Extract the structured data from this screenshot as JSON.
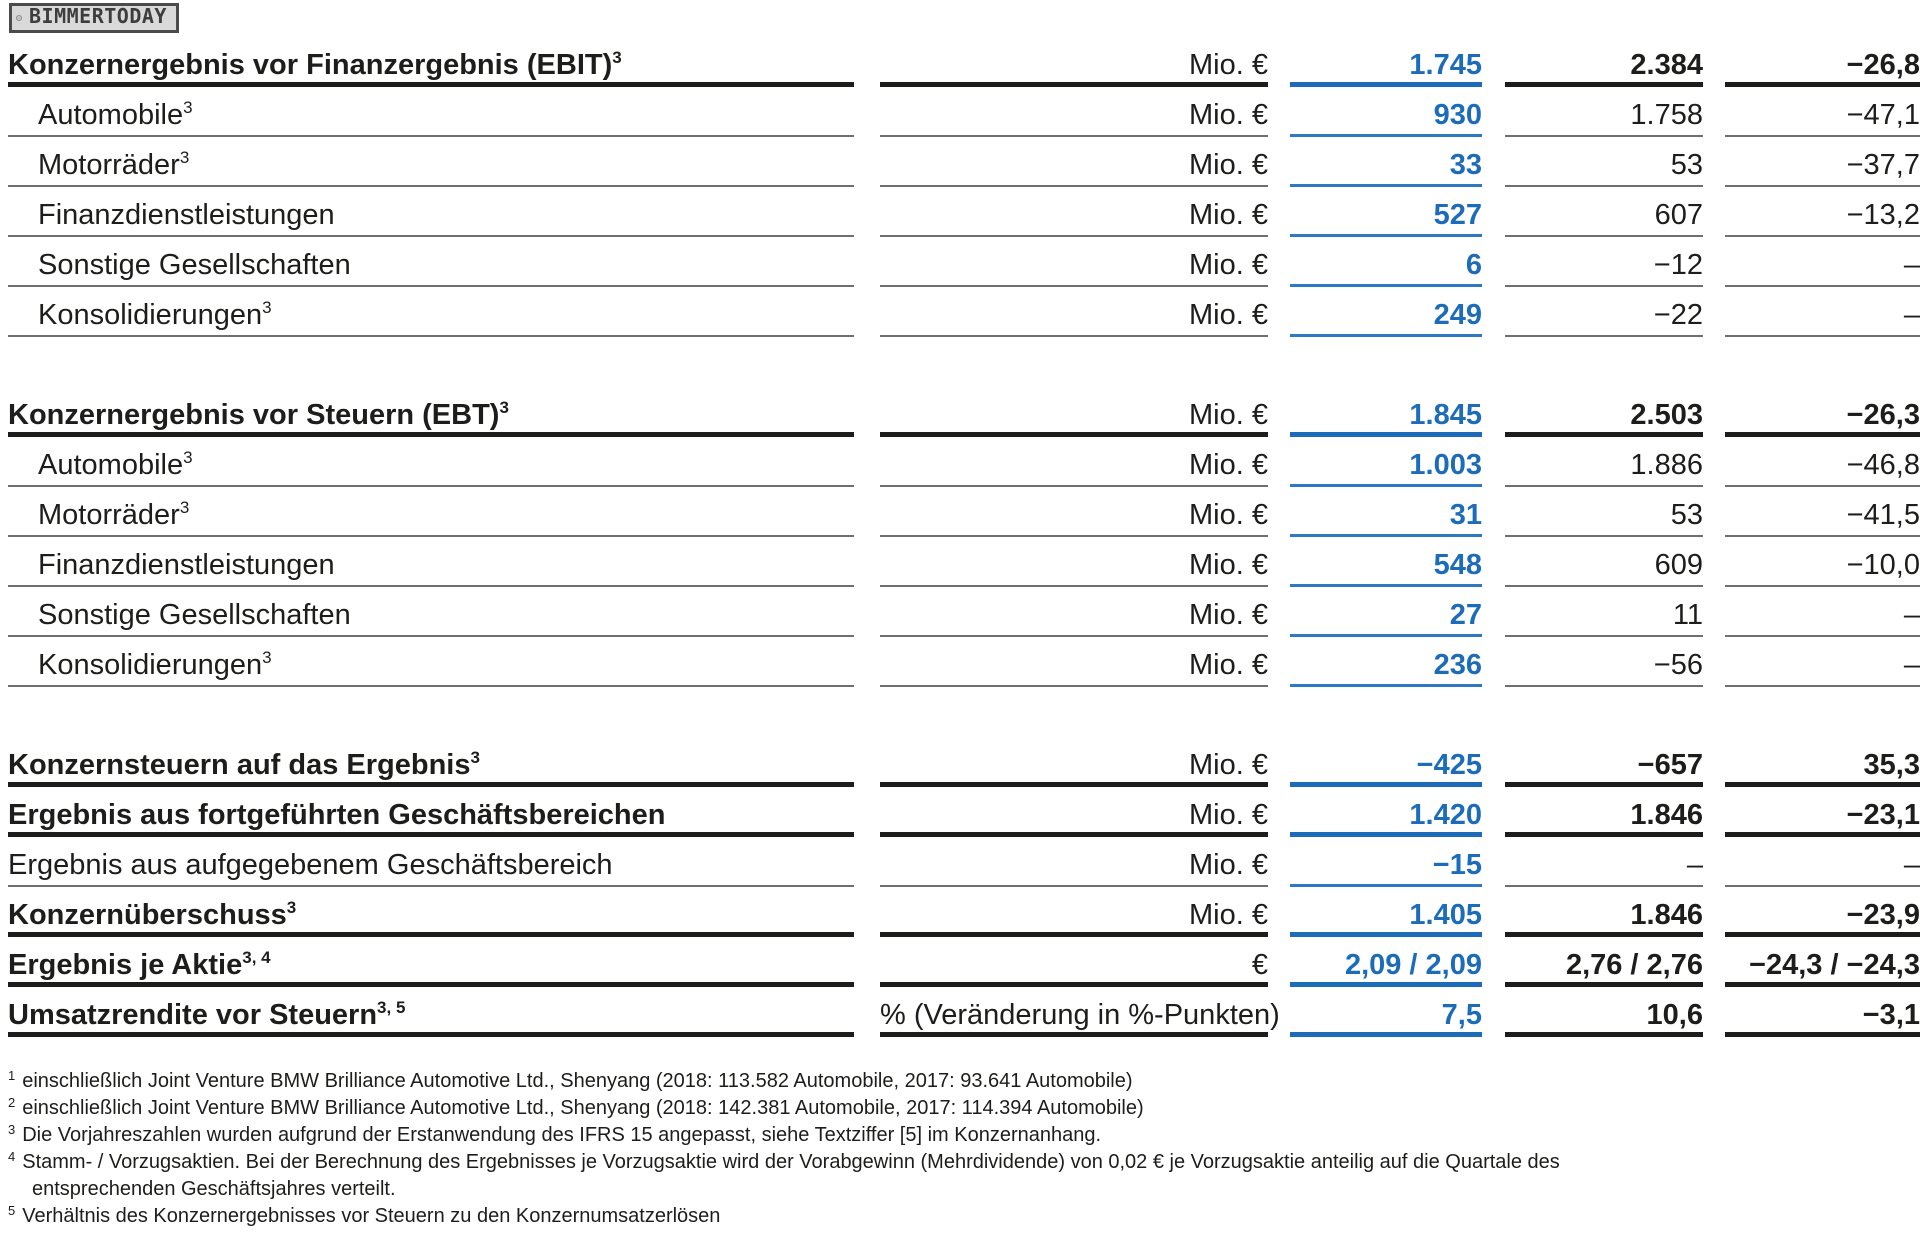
{
  "logo": {
    "text": "BIMMERTODAY"
  },
  "colors": {
    "accent_blue": "#1c6cba",
    "ink": "#1d1d1b",
    "rule_gray": "#6f6f6f",
    "logo_bg": "#d9d9d9",
    "logo_border": "#4b4b4b"
  },
  "table": {
    "rows": [
      {
        "label": "Konzernergebnis vor Finanzergebnis (EBIT)",
        "sup": "3",
        "unit": "Mio. €",
        "current": "1.745",
        "previous": "2.384",
        "change": "−26,8",
        "bold": true,
        "indent": false,
        "gap_before": false
      },
      {
        "label": "Automobile",
        "sup": "3",
        "unit": "Mio. €",
        "current": "930",
        "previous": "1.758",
        "change": "−47,1",
        "bold": false,
        "indent": true,
        "gap_before": false
      },
      {
        "label": "Motorräder",
        "sup": "3",
        "unit": "Mio. €",
        "current": "33",
        "previous": "53",
        "change": "−37,7",
        "bold": false,
        "indent": true,
        "gap_before": false
      },
      {
        "label": "Finanzdienstleistungen",
        "sup": "",
        "unit": "Mio. €",
        "current": "527",
        "previous": "607",
        "change": "−13,2",
        "bold": false,
        "indent": true,
        "gap_before": false
      },
      {
        "label": "Sonstige Gesellschaften",
        "sup": "",
        "unit": "Mio. €",
        "current": "6",
        "previous": "−12",
        "change": "–",
        "bold": false,
        "indent": true,
        "gap_before": false
      },
      {
        "label": "Konsolidierungen",
        "sup": "3",
        "unit": "Mio. €",
        "current": "249",
        "previous": "−22",
        "change": "–",
        "bold": false,
        "indent": true,
        "gap_before": false
      },
      {
        "label": "Konzernergebnis vor Steuern (EBT)",
        "sup": "3",
        "unit": "Mio. €",
        "current": "1.845",
        "previous": "2.503",
        "change": "−26,3",
        "bold": true,
        "indent": false,
        "gap_before": true
      },
      {
        "label": "Automobile",
        "sup": "3",
        "unit": "Mio. €",
        "current": "1.003",
        "previous": "1.886",
        "change": "−46,8",
        "bold": false,
        "indent": true,
        "gap_before": false
      },
      {
        "label": "Motorräder",
        "sup": "3",
        "unit": "Mio. €",
        "current": "31",
        "previous": "53",
        "change": "−41,5",
        "bold": false,
        "indent": true,
        "gap_before": false
      },
      {
        "label": "Finanzdienstleistungen",
        "sup": "",
        "unit": "Mio. €",
        "current": "548",
        "previous": "609",
        "change": "−10,0",
        "bold": false,
        "indent": true,
        "gap_before": false
      },
      {
        "label": "Sonstige Gesellschaften",
        "sup": "",
        "unit": "Mio. €",
        "current": "27",
        "previous": "11",
        "change": "–",
        "bold": false,
        "indent": true,
        "gap_before": false
      },
      {
        "label": "Konsolidierungen",
        "sup": "3",
        "unit": "Mio. €",
        "current": "236",
        "previous": "−56",
        "change": "–",
        "bold": false,
        "indent": true,
        "gap_before": false
      },
      {
        "label": "Konzernsteuern auf das Ergebnis",
        "sup": "3",
        "unit": "Mio. €",
        "current": "−425",
        "previous": "−657",
        "change": "35,3",
        "bold": true,
        "indent": false,
        "gap_before": true
      },
      {
        "label": "Ergebnis aus fortgeführten Geschäftsbereichen",
        "sup": "",
        "unit": "Mio. €",
        "current": "1.420",
        "previous": "1.846",
        "change": "−23,1",
        "bold": true,
        "indent": false,
        "gap_before": false
      },
      {
        "label": "Ergebnis aus aufgegebenem Geschäftsbereich",
        "sup": "",
        "unit": "Mio. €",
        "current": "−15",
        "previous": "–",
        "change": "–",
        "bold": false,
        "indent": false,
        "gap_before": false
      },
      {
        "label": "Konzernüberschuss",
        "sup": "3",
        "unit": "Mio. €",
        "current": "1.405",
        "previous": "1.846",
        "change": "−23,9",
        "bold": true,
        "indent": false,
        "gap_before": false
      },
      {
        "label": "Ergebnis je Aktie",
        "sup": "3, 4",
        "unit": "€",
        "current": "2,09 / 2,09",
        "previous": "2,76 / 2,76",
        "change": "−24,3 / −24,3",
        "bold": true,
        "indent": false,
        "gap_before": false
      },
      {
        "label": "Umsatzrendite vor Steuern",
        "sup": "3, 5",
        "unit": "% (Veränderung in %-Punkten)",
        "current": "7,5",
        "previous": "10,6",
        "change": "−3,1",
        "bold": true,
        "indent": false,
        "gap_before": false
      }
    ]
  },
  "footnotes": [
    {
      "sup": "1",
      "text": "einschließlich Joint Venture BMW Brilliance Automotive Ltd., Shenyang (2018: 113.582 Automobile, 2017: 93.641 Automobile)",
      "text2": ""
    },
    {
      "sup": "2",
      "text": "einschließlich Joint Venture BMW Brilliance Automotive Ltd., Shenyang (2018: 142.381 Automobile, 2017: 114.394 Automobile)",
      "text2": ""
    },
    {
      "sup": "3",
      "text": "Die Vorjahreszahlen wurden aufgrund der Erstanwendung des IFRS 15 angepasst, siehe Textziffer [5] im Konzernanhang.",
      "text2": ""
    },
    {
      "sup": "4",
      "text": "Stamm- / Vorzugsaktien. Bei der Berechnung des Ergebnisses je Vorzugsaktie wird der Vorabgewinn (Mehrdividende) von 0,02 € je Vorzugsaktie anteilig auf die Quartale des",
      "text2": "entsprechenden Geschäftsjahres verteilt."
    },
    {
      "sup": "5",
      "text": "Verhältnis des Konzernergebnisses vor Steuern zu den Konzernumsatzerlösen",
      "text2": ""
    }
  ]
}
